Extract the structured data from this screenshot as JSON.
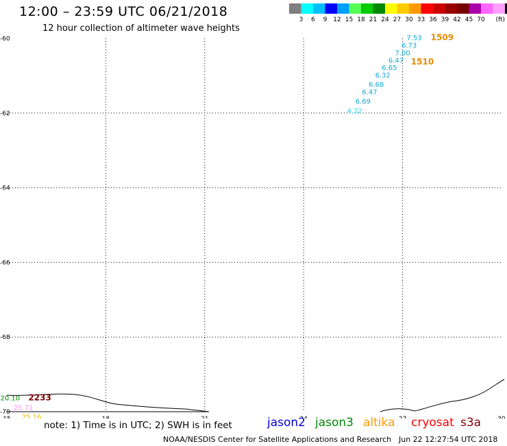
{
  "header": {
    "title": "12:00 – 23:59 UTC 06/21/2018",
    "subtitle": "12 hour collection of altimeter wave heights"
  },
  "color_scale": {
    "unit": "(ft)",
    "colors": [
      "#7f7f7f",
      "#00ffff",
      "#00bfff",
      "#0000ff",
      "#00a0ff",
      "#55ff55",
      "#00cc00",
      "#008800",
      "#ffff00",
      "#ffcc00",
      "#ff9900",
      "#ff0000",
      "#cc0000",
      "#990000",
      "#770000",
      "#aa00aa",
      "#ff66ff",
      "#ffa0ff",
      "#000000"
    ],
    "labels": [
      "3",
      "6",
      "9",
      "12",
      "15",
      "18",
      "21",
      "24",
      "27",
      "30",
      "33",
      "36",
      "39",
      "42",
      "45",
      "70"
    ]
  },
  "chart_data": {
    "type": "scatter",
    "title": "12:00 – 23:59 UTC 06/21/2018",
    "xlim": [
      15,
      30
    ],
    "ylim": [
      -70,
      -60
    ],
    "x_ticks": [
      "15",
      "18",
      "21",
      "24",
      "27",
      "30"
    ],
    "y_ticks": [
      "-60",
      "-62",
      "-64",
      "-66",
      "-68",
      "-70"
    ],
    "grid": true,
    "points": [
      {
        "lon": 27.35,
        "lat": -60.05,
        "value": "7.53",
        "color": "#0aa8d8"
      },
      {
        "lon": 27.2,
        "lat": -60.25,
        "value": "6.73",
        "color": "#0aa8d8"
      },
      {
        "lon": 27.0,
        "lat": -60.45,
        "value": "7.00",
        "color": "#0aa8d8"
      },
      {
        "lon": 26.8,
        "lat": -60.65,
        "value": "6.47",
        "color": "#0aa8d8"
      },
      {
        "lon": 26.6,
        "lat": -60.85,
        "value": "6.65",
        "color": "#0aa8d8"
      },
      {
        "lon": 26.4,
        "lat": -61.05,
        "value": "6.32",
        "color": "#0aa8d8"
      },
      {
        "lon": 26.2,
        "lat": -61.3,
        "value": "6.68",
        "color": "#0aa8d8"
      },
      {
        "lon": 26.0,
        "lat": -61.5,
        "value": "6.47",
        "color": "#0aa8d8"
      },
      {
        "lon": 25.8,
        "lat": -61.75,
        "value": "6.69",
        "color": "#0aa8d8"
      },
      {
        "lon": 25.55,
        "lat": -62.0,
        "value": "4.22",
        "color": "#22d4ee"
      },
      {
        "lon": 15.1,
        "lat": -69.7,
        "value": "20.10",
        "color": "#008800"
      },
      {
        "lon": 15.5,
        "lat": -69.95,
        "value": "25.71",
        "color": "#ff90ff"
      },
      {
        "lon": 15.75,
        "lat": -70.2,
        "value": "25.16",
        "color": "#e8c000"
      }
    ],
    "pass_labels": [
      {
        "lon": 28.2,
        "lat": -60.05,
        "text": "1509",
        "color": "#e88a00"
      },
      {
        "lon": 27.6,
        "lat": -60.7,
        "text": "1510",
        "color": "#e88a00"
      },
      {
        "lon": 16.0,
        "lat": -69.7,
        "text": "2233",
        "color": "#7a0000"
      }
    ]
  },
  "footer": {
    "note": "note: 1) Time is in UTC; 2) SWH is in feet",
    "satellites": [
      {
        "name": "jason2",
        "color": "#0000dd"
      },
      {
        "name": "jason3",
        "color": "#008800"
      },
      {
        "name": "altika",
        "color": "#ff9900"
      },
      {
        "name": "cryosat",
        "color": "#ff0000"
      },
      {
        "name": "s3a",
        "color": "#880000"
      }
    ],
    "credit": "NOAA/NESDIS Center for Satellite Applications and Research",
    "timestamp": "Jun 22 12:27:54 UTC 2018"
  }
}
